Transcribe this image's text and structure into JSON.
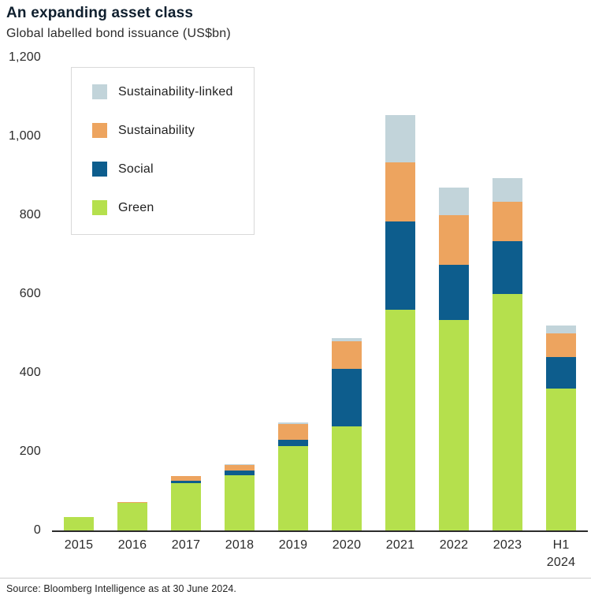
{
  "header": {
    "title": "An expanding asset class",
    "subtitle": "Global labelled bond issuance (US$bn)"
  },
  "footer": {
    "source": "Source: Bloomberg Intelligence as at 30 June 2024."
  },
  "chart_data": {
    "type": "bar",
    "stacked": true,
    "title": "An expanding asset class",
    "subtitle": "Global labelled bond issuance (US$bn)",
    "xlabel": "",
    "ylabel": "US$bn",
    "ylim": [
      0,
      1200
    ],
    "yticks": [
      0,
      200,
      400,
      600,
      800,
      1000,
      1200
    ],
    "ytick_labels": [
      "0",
      "200",
      "400",
      "600",
      "800",
      "1,000",
      "1,200"
    ],
    "grid": false,
    "legend_position": "top-left",
    "legend_order": [
      "Sustainability-linked",
      "Sustainability",
      "Social",
      "Green"
    ],
    "categories": [
      "2015",
      "2016",
      "2017",
      "2018",
      "2019",
      "2020",
      "2021",
      "2022",
      "2023",
      "H1 2024"
    ],
    "series": [
      {
        "name": "Green",
        "color": "#b5e04d",
        "values": [
          35,
          70,
          120,
          140,
          215,
          265,
          560,
          535,
          600,
          360
        ]
      },
      {
        "name": "Social",
        "color": "#0d5d8d",
        "values": [
          0,
          0,
          6,
          12,
          15,
          145,
          225,
          140,
          135,
          80
        ]
      },
      {
        "name": "Sustainability",
        "color": "#eda45f",
        "values": [
          0,
          2,
          12,
          15,
          40,
          70,
          150,
          125,
          100,
          60
        ]
      },
      {
        "name": "Sustainability-linked",
        "color": "#c2d4da",
        "values": [
          0,
          0,
          0,
          2,
          5,
          8,
          120,
          70,
          60,
          20
        ]
      }
    ]
  }
}
